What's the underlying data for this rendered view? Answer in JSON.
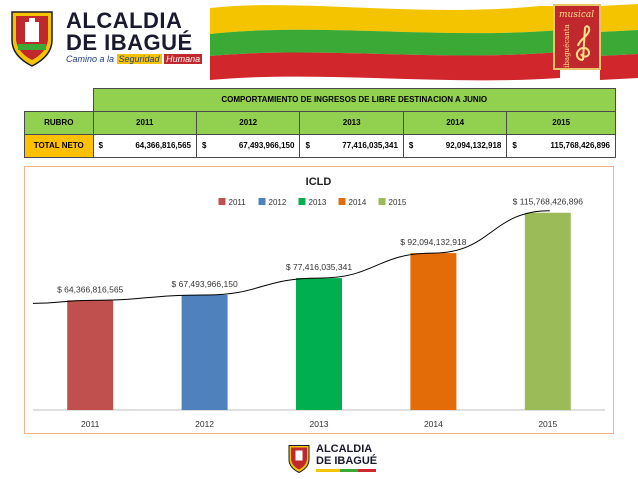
{
  "header": {
    "logo_line1": "ALCALDIA",
    "logo_line2": "DE IBAGUÉ",
    "logo_tagline_pre": "Camino a la ",
    "logo_tagline_hl1": "Seguridad",
    "logo_tagline_hl2": "Humana",
    "badge_text_1": "musical",
    "badge_text_2": "ibaguécanta"
  },
  "summary_table": {
    "title": "COMPORTAMIENTO DE INGRESOS DE LIBRE DESTINACION A JUNIO",
    "header": [
      "RUBRO",
      "2011",
      "2012",
      "2013",
      "2014",
      "2015"
    ],
    "row_label": "TOTAL NETO",
    "currency": "$",
    "values": [
      "64,366,816,565",
      "67,493,966,150",
      "77,416,035,341",
      "92,094,132,918",
      "115,768,426,896"
    ]
  },
  "chart_data": {
    "type": "bar",
    "title": "ICLD",
    "categories": [
      "2011",
      "2012",
      "2013",
      "2014",
      "2015"
    ],
    "values": [
      64366816565,
      67493966150,
      77416035341,
      92094132918,
      115768426896
    ],
    "data_labels": [
      "$ 64,366,816,565",
      "$ 67,493,966,150",
      "$ 77,416,035,341",
      "$ 92,094,132,918",
      "$ 115,768,426,896"
    ],
    "legend": [
      "2011",
      "2012",
      "2013",
      "2014",
      "2015"
    ],
    "legend_position": "top",
    "colors": [
      "#c0504d",
      "#4f81bd",
      "#00b050",
      "#e36c09",
      "#9bbb59"
    ],
    "ylim": [
      0,
      125000000000
    ],
    "trendline": true,
    "gridlines": false
  },
  "footer": {
    "logo_line1": "ALCALDIA",
    "logo_line2": "DE IBAGUÉ"
  }
}
